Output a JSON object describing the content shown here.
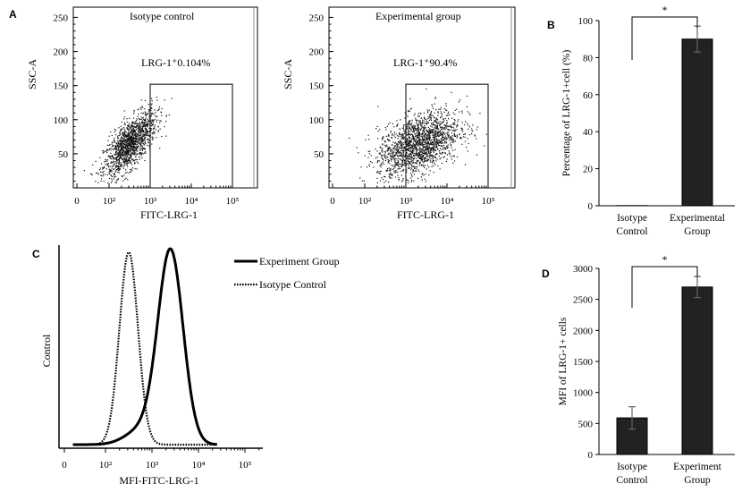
{
  "panels": {
    "A": {
      "letter": "A",
      "plots": [
        {
          "title": "Isotype control",
          "gate_label": "LRG-1⁺0.104%",
          "xlabel": "FITC-LRG-1",
          "ylabel": "SSC-A",
          "x_ticks": [
            "0",
            "10²",
            "10³",
            "10⁴",
            "10⁵"
          ],
          "y_ticks": [
            "250",
            "200",
            "150",
            "100",
            "50"
          ],
          "gate": {
            "x": [
              3,
              5
            ],
            "y": [
              0,
              152
            ]
          },
          "cloud": {
            "center_log": 2.5,
            "spread_x": 0.32,
            "center_y": 65,
            "spread_y": 24,
            "count": 1400,
            "corr": 0.7
          }
        },
        {
          "title": "Experimental group",
          "gate_label": "LRG-1⁺90.4%",
          "xlabel": "FITC-LRG-1",
          "ylabel": "SSC-A",
          "x_ticks": [
            "0",
            "10²",
            "10³",
            "10⁴",
            "10⁵"
          ],
          "y_ticks": [
            "250",
            "200",
            "150",
            "100",
            "50"
          ],
          "gate": {
            "x": [
              3,
              5
            ],
            "y": [
              0,
              152
            ]
          },
          "cloud": {
            "center_log": 3.3,
            "spread_x": 0.5,
            "center_y": 65,
            "spread_y": 24,
            "count": 1800,
            "corr": 0.45
          }
        }
      ]
    },
    "B": {
      "letter": "B",
      "chart_data": {
        "type": "bar",
        "categories": [
          "Isotype Control",
          "Experimental Group"
        ],
        "category_lines": [
          [
            "Isotype",
            "Control"
          ],
          [
            "Experimental",
            "Group"
          ]
        ],
        "values": [
          0.1,
          90
        ],
        "errors": [
          0.1,
          7
        ],
        "ylabel": "Percentage of LRG-1+cell (%)",
        "ylim": [
          0,
          100
        ],
        "yticks": [
          0,
          20,
          40,
          60,
          80,
          100
        ],
        "significance": "*",
        "bar_color": "#222222"
      }
    },
    "C": {
      "letter": "C",
      "chart_data": {
        "type": "line",
        "xlabel": "MFI-FITC-LRG-1",
        "ylabel": "Control",
        "x_ticks": [
          "0",
          "10²",
          "10³",
          "10⁴",
          "10⁵"
        ],
        "series": [
          {
            "name": "Experiment Group",
            "style": "solid",
            "peak_log": 3.4,
            "width": 0.27,
            "shoulder": true
          },
          {
            "name": "Isotype Control",
            "style": "dotted",
            "peak_log": 2.5,
            "width": 0.2,
            "shoulder": false
          }
        ]
      }
    },
    "D": {
      "letter": "D",
      "chart_data": {
        "type": "bar",
        "categories": [
          "Isotype Control",
          "Experiment Group"
        ],
        "category_lines": [
          [
            "Isotype",
            "Control"
          ],
          [
            "Experiment",
            "Group"
          ]
        ],
        "values": [
          590,
          2700
        ],
        "errors": [
          180,
          170
        ],
        "ylabel": "MFI of LRG-1+ cells",
        "ylim": [
          0,
          3000
        ],
        "yticks": [
          0,
          500,
          1000,
          1500,
          2000,
          2500,
          3000
        ],
        "significance": "*",
        "bar_color": "#222222"
      }
    }
  }
}
